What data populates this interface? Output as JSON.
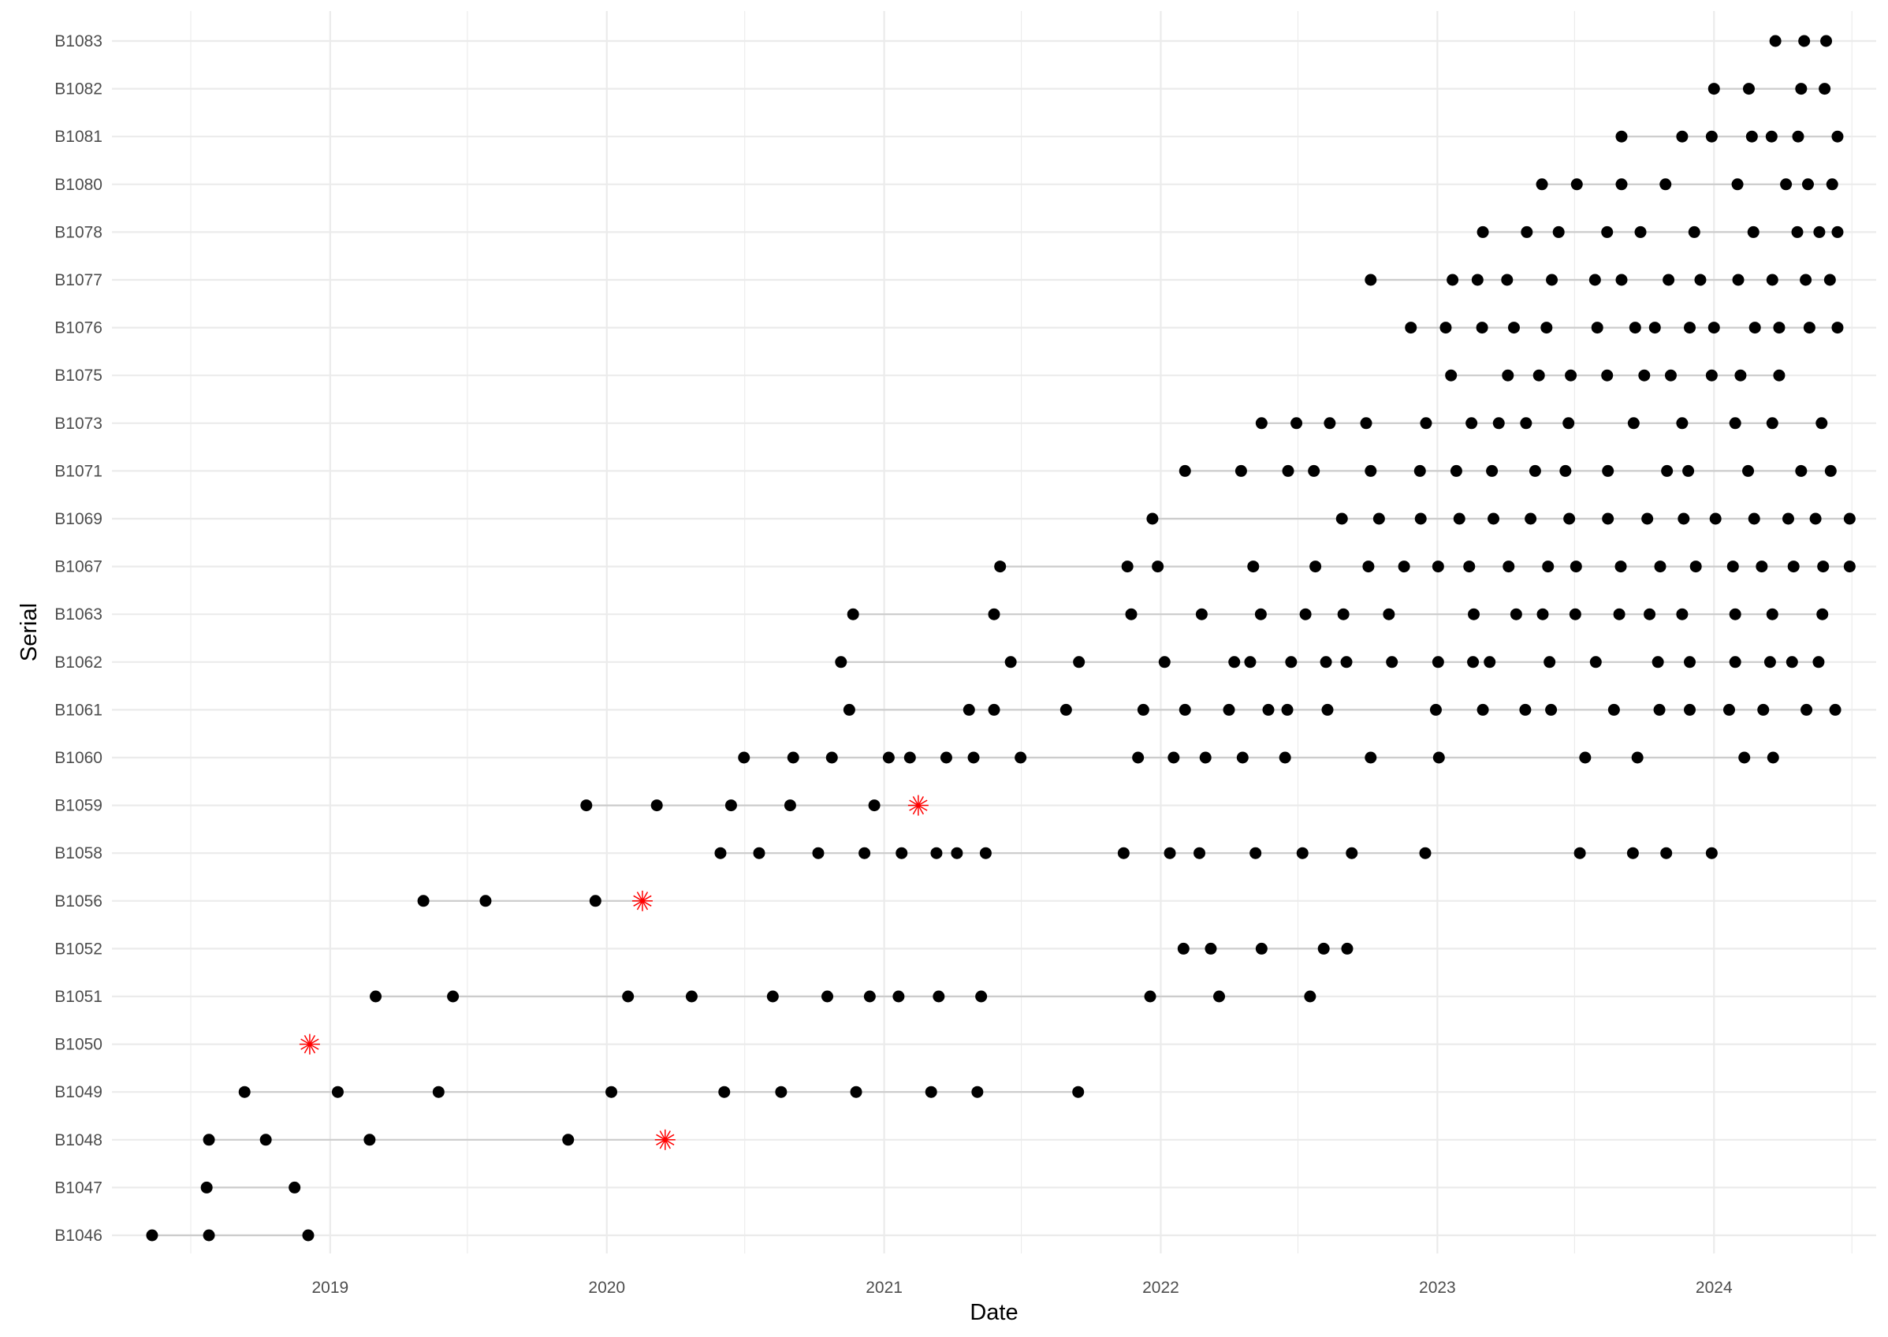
{
  "chart_data": {
    "type": "scatter",
    "xlabel": "Date",
    "ylabel": "Serial",
    "x_tick_labels": [
      "2019",
      "2020",
      "2021",
      "2022",
      "2023",
      "2024"
    ],
    "xlim": [
      "2018-03-19",
      "2024-08-02"
    ],
    "grid": true,
    "legend": "none",
    "colors": {
      "point": "#000000",
      "failure": "#ff0000",
      "line": "#cccccc",
      "grid": "#ebebeb"
    },
    "categories": [
      "B1046",
      "B1047",
      "B1048",
      "B1049",
      "B1050",
      "B1051",
      "B1052",
      "B1056",
      "B1058",
      "B1059",
      "B1060",
      "B1061",
      "B1062",
      "B1063",
      "B1067",
      "B1069",
      "B1071",
      "B1073",
      "B1075",
      "B1076",
      "B1077",
      "B1078",
      "B1080",
      "B1081",
      "B1082",
      "B1083"
    ],
    "series": [
      {
        "serial": "B1046",
        "events": [
          "2018-05-11",
          "2018-07-25",
          "2018-12-03"
        ],
        "failure": null
      },
      {
        "serial": "B1047",
        "events": [
          "2018-07-22",
          "2018-11-15"
        ],
        "failure": null
      },
      {
        "serial": "B1048",
        "events": [
          "2018-07-25",
          "2018-10-08",
          "2019-02-22",
          "2019-11-11"
        ],
        "failure": "2020-03-18"
      },
      {
        "serial": "B1049",
        "events": [
          "2018-09-10",
          "2019-01-11",
          "2019-05-24",
          "2020-01-07",
          "2020-06-04",
          "2020-08-18",
          "2020-11-25",
          "2021-03-04",
          "2021-05-04",
          "2021-09-14"
        ],
        "failure": null
      },
      {
        "serial": "B1050",
        "events": [],
        "failure": "2018-12-05"
      },
      {
        "serial": "B1051",
        "events": [
          "2019-03-02",
          "2019-06-12",
          "2020-01-29",
          "2020-04-22",
          "2020-08-07",
          "2020-10-18",
          "2020-12-13",
          "2021-01-20",
          "2021-03-14",
          "2021-05-09",
          "2021-12-18",
          "2022-03-19",
          "2022-07-17"
        ],
        "failure": null
      },
      {
        "serial": "B1052",
        "events": [
          "2022-01-31",
          "2022-03-08",
          "2022-05-14",
          "2022-08-04",
          "2022-09-04"
        ],
        "failure": null
      },
      {
        "serial": "B1056",
        "events": [
          "2019-05-04",
          "2019-07-25",
          "2019-12-17"
        ],
        "failure": "2020-02-17"
      },
      {
        "serial": "B1058",
        "events": [
          "2020-05-30",
          "2020-07-20",
          "2020-10-06",
          "2020-12-06",
          "2021-01-24",
          "2021-03-11",
          "2021-04-07",
          "2021-05-15",
          "2021-11-13",
          "2022-01-13",
          "2022-02-21",
          "2022-05-06",
          "2022-07-07",
          "2022-09-10",
          "2022-12-16",
          "2023-07-08",
          "2023-09-16",
          "2023-10-30",
          "2023-12-29"
        ],
        "failure": null
      },
      {
        "serial": "B1059",
        "events": [
          "2019-12-05",
          "2020-03-07",
          "2020-06-13",
          "2020-08-30",
          "2020-12-19"
        ],
        "failure": "2021-02-15"
      },
      {
        "serial": "B1060",
        "events": [
          "2020-06-30",
          "2020-09-03",
          "2020-10-24",
          "2021-01-07",
          "2021-02-04",
          "2021-03-24",
          "2021-04-29",
          "2021-06-30",
          "2021-12-02",
          "2022-01-18",
          "2022-03-01",
          "2022-04-19",
          "2022-06-14",
          "2022-10-05",
          "2023-01-03",
          "2023-07-15",
          "2023-09-22",
          "2024-02-10",
          "2024-03-19"
        ],
        "failure": null
      },
      {
        "serial": "B1061",
        "events": [
          "2020-11-16",
          "2021-04-23",
          "2021-05-26",
          "2021-08-29",
          "2021-12-09",
          "2022-02-02",
          "2022-04-01",
          "2022-05-23",
          "2022-06-17",
          "2022-08-09",
          "2022-12-30",
          "2023-03-02",
          "2023-04-27",
          "2023-05-31",
          "2023-08-22",
          "2023-10-21",
          "2023-11-30",
          "2024-01-21",
          "2024-03-06",
          "2024-05-02",
          "2024-06-09"
        ],
        "failure": null
      },
      {
        "serial": "B1062",
        "events": [
          "2020-11-05",
          "2021-06-17",
          "2021-09-15",
          "2022-01-06",
          "2022-04-08",
          "2022-04-29",
          "2022-06-22",
          "2022-08-07",
          "2022-09-03",
          "2022-11-02",
          "2023-01-02",
          "2023-02-17",
          "2023-03-11",
          "2023-05-29",
          "2023-07-29",
          "2023-10-19",
          "2023-11-30",
          "2024-01-29",
          "2024-03-15",
          "2024-04-13",
          "2024-05-18"
        ],
        "failure": null
      },
      {
        "serial": "B1063",
        "events": [
          "2020-11-21",
          "2021-05-26",
          "2021-11-23",
          "2022-02-24",
          "2022-05-13",
          "2022-07-11",
          "2022-08-30",
          "2022-10-29",
          "2023-02-18",
          "2023-04-15",
          "2023-05-20",
          "2023-07-02",
          "2023-08-29",
          "2023-10-08",
          "2023-11-20",
          "2024-01-29",
          "2024-03-18",
          "2024-05-23"
        ],
        "failure": null
      },
      {
        "serial": "B1067",
        "events": [
          "2021-06-03",
          "2021-11-18",
          "2021-12-28",
          "2022-05-03",
          "2022-07-24",
          "2022-10-02",
          "2022-11-18",
          "2023-01-02",
          "2023-02-12",
          "2023-04-05",
          "2023-05-27",
          "2023-07-03",
          "2023-08-31",
          "2023-10-22",
          "2023-12-08",
          "2024-01-26",
          "2024-03-04",
          "2024-04-15",
          "2024-05-24",
          "2024-06-28"
        ],
        "failure": null
      },
      {
        "serial": "B1069",
        "events": [
          "2021-12-21",
          "2022-08-28",
          "2022-10-16",
          "2022-12-10",
          "2023-01-30",
          "2023-03-16",
          "2023-05-04",
          "2023-06-24",
          "2023-08-14",
          "2023-10-05",
          "2023-11-22",
          "2024-01-03",
          "2024-02-23",
          "2024-04-08",
          "2024-05-14",
          "2024-06-28"
        ],
        "failure": null
      },
      {
        "serial": "B1071",
        "events": [
          "2022-02-02",
          "2022-04-17",
          "2022-06-18",
          "2022-07-22",
          "2022-10-05",
          "2022-12-09",
          "2023-01-26",
          "2023-03-14",
          "2023-05-10",
          "2023-06-19",
          "2023-08-14",
          "2023-10-31",
          "2023-11-28",
          "2024-02-15",
          "2024-04-25",
          "2024-06-03"
        ],
        "failure": null
      },
      {
        "serial": "B1073",
        "events": [
          "2022-05-14",
          "2022-06-29",
          "2022-08-12",
          "2022-09-29",
          "2022-12-17",
          "2023-02-15",
          "2023-03-23",
          "2023-04-28",
          "2023-06-23",
          "2023-09-17",
          "2023-11-20",
          "2024-01-29",
          "2024-03-18",
          "2024-05-22"
        ],
        "failure": null
      },
      {
        "serial": "B1075",
        "events": [
          "2023-01-19",
          "2023-04-04",
          "2023-05-15",
          "2023-06-26",
          "2023-08-13",
          "2023-10-01",
          "2023-11-05",
          "2023-12-29",
          "2024-02-05",
          "2024-03-27"
        ],
        "failure": null
      },
      {
        "serial": "B1076",
        "events": [
          "2022-11-27",
          "2023-01-12",
          "2023-03-01",
          "2023-04-12",
          "2023-05-25",
          "2023-07-31",
          "2023-09-19",
          "2023-10-15",
          "2023-11-30",
          "2024-01-01",
          "2024-02-24",
          "2024-03-27",
          "2024-05-06",
          "2024-06-12"
        ],
        "failure": null
      },
      {
        "serial": "B1077",
        "events": [
          "2022-10-05",
          "2023-01-21",
          "2023-02-23",
          "2023-04-03",
          "2023-06-01",
          "2023-07-28",
          "2023-09-01",
          "2023-11-02",
          "2023-12-14",
          "2024-02-02",
          "2024-03-18",
          "2024-05-01",
          "2024-06-02"
        ],
        "failure": null
      },
      {
        "serial": "B1078",
        "events": [
          "2023-03-02",
          "2023-04-29",
          "2023-06-10",
          "2023-08-13",
          "2023-09-26",
          "2023-12-06",
          "2024-02-22",
          "2024-04-20",
          "2024-05-19",
          "2024-06-12"
        ],
        "failure": null
      },
      {
        "serial": "B1080",
        "events": [
          "2023-05-19",
          "2023-07-04",
          "2023-09-01",
          "2023-10-29",
          "2024-02-01",
          "2024-04-05",
          "2024-05-04",
          "2024-06-05"
        ],
        "failure": null
      },
      {
        "serial": "B1081",
        "events": [
          "2023-09-01",
          "2023-11-20",
          "2023-12-29",
          "2024-02-20",
          "2024-03-17",
          "2024-04-21",
          "2024-06-12"
        ],
        "failure": null
      },
      {
        "serial": "B1082",
        "events": [
          "2024-01-01",
          "2024-02-16",
          "2024-04-25",
          "2024-05-26"
        ],
        "failure": null
      },
      {
        "serial": "B1083",
        "events": [
          "2024-03-22",
          "2024-04-29",
          "2024-05-28"
        ],
        "failure": null
      }
    ]
  }
}
